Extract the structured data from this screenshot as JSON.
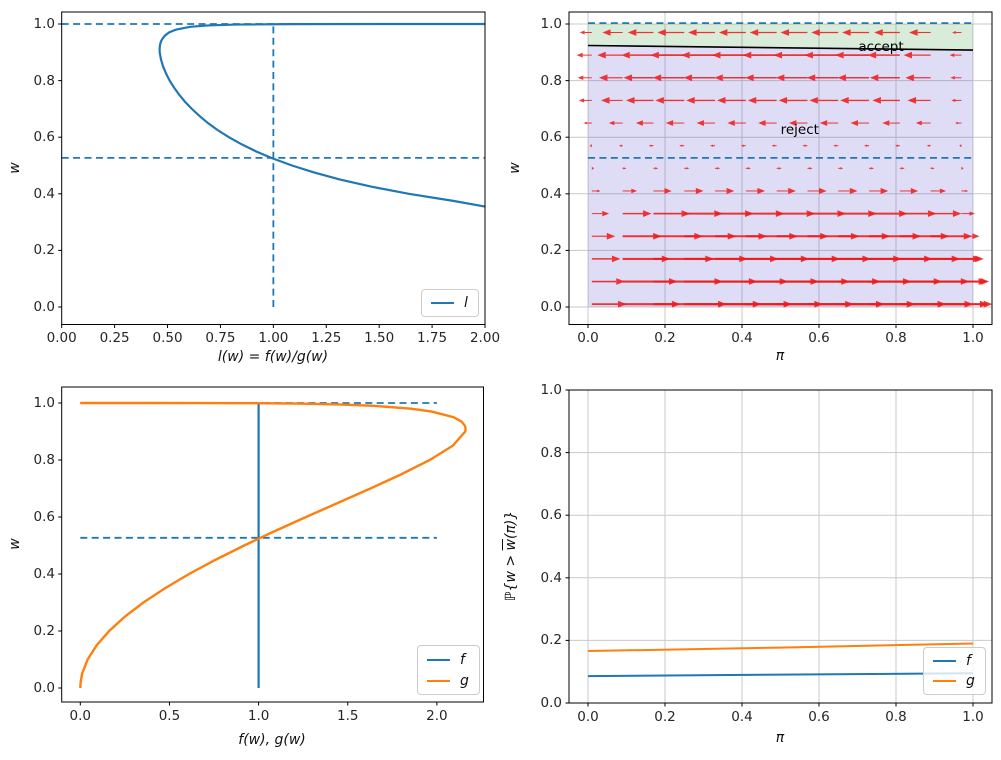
{
  "figure": {
    "background": "#ffffff"
  },
  "colors": {
    "blue": "#1f77b4",
    "orange": "#ff7f0e",
    "quiver_red": "#ee1c1c",
    "boundary_black": "#000000",
    "grid": "#c9c9c9",
    "accept_fill": "rgba(0,128,0,0.15)",
    "reject_fill": "rgba(63,55,201,0.17)",
    "spine": "#000000"
  },
  "chart_data": [
    {
      "id": "top_left",
      "type": "line",
      "xlabel": "l(w) = f(w)/g(w)",
      "ylabel": "w",
      "xlim": [
        0,
        2
      ],
      "ylim": [
        -0.06,
        1.05
      ],
      "grid": false,
      "xticks": {
        "values": [
          0,
          0.25,
          0.5,
          0.75,
          1.0,
          1.25,
          1.5,
          1.75,
          2.0
        ],
        "labels": [
          "0.00",
          "0.25",
          "0.50",
          "0.75",
          "1.00",
          "1.25",
          "1.50",
          "1.75",
          "2.00"
        ]
      },
      "yticks": {
        "values": [
          0,
          0.2,
          0.4,
          0.6,
          0.8,
          1.0
        ],
        "labels": [
          "0.0",
          "0.2",
          "0.4",
          "0.6",
          "0.8",
          "1.0"
        ]
      },
      "guides": [
        {
          "type": "h",
          "at": 1.0,
          "from": 0,
          "to": 2
        },
        {
          "type": "h",
          "at": 0.527,
          "from": 0,
          "to": 2
        },
        {
          "type": "v",
          "at": 1.0,
          "from": 0,
          "to": 1.0
        }
      ],
      "series": [
        {
          "name": "l",
          "color": "#1f77b4",
          "width": 2.2,
          "points": [
            [
              2.0,
              0.355
            ],
            [
              1.85,
              0.375
            ],
            [
              1.64,
              0.4
            ],
            [
              1.464,
              0.425
            ],
            [
              1.318,
              0.45
            ],
            [
              1.194,
              0.475
            ],
            [
              1.088,
              0.5
            ],
            [
              0.99,
              0.527
            ],
            [
              0.918,
              0.55
            ],
            [
              0.85,
              0.575
            ],
            [
              0.79,
              0.6
            ],
            [
              0.737,
              0.625
            ],
            [
              0.691,
              0.65
            ],
            [
              0.651,
              0.675
            ],
            [
              0.615,
              0.7
            ],
            [
              0.583,
              0.725
            ],
            [
              0.555,
              0.75
            ],
            [
              0.531,
              0.775
            ],
            [
              0.51,
              0.8
            ],
            [
              0.493,
              0.825
            ],
            [
              0.479,
              0.85
            ],
            [
              0.469,
              0.875
            ],
            [
              0.463,
              0.9
            ],
            [
              0.4627,
              0.91
            ],
            [
              0.4635,
              0.92
            ],
            [
              0.4657,
              0.93
            ],
            [
              0.47,
              0.94
            ],
            [
              0.478,
              0.95
            ],
            [
              0.489,
              0.96
            ],
            [
              0.507,
              0.97
            ],
            [
              0.539,
              0.98
            ],
            [
              0.607,
              0.99
            ],
            [
              0.69,
              0.995
            ],
            [
              0.824,
              0.998
            ],
            [
              1.084,
              0.9995
            ],
            [
              1.494,
              0.9999
            ],
            [
              1.72,
              0.99995
            ],
            [
              2.0,
              0.99998
            ]
          ]
        }
      ],
      "legend": [
        {
          "label": "l",
          "color": "#1f77b4"
        }
      ],
      "legend_loc": "lower right"
    },
    {
      "id": "top_right",
      "type": "quiver",
      "xlabel": "π",
      "ylabel": "w",
      "xlim": [
        -0.05,
        1.05
      ],
      "ylim": [
        -0.06,
        1.05
      ],
      "grid": true,
      "xticks": {
        "values": [
          0,
          0.2,
          0.4,
          0.6,
          0.8,
          1.0
        ],
        "labels": [
          "0.0",
          "0.2",
          "0.4",
          "0.6",
          "0.8",
          "1.0"
        ]
      },
      "yticks": {
        "values": [
          0,
          0.2,
          0.4,
          0.6,
          0.8,
          1.0
        ],
        "labels": [
          "0.0",
          "0.2",
          "0.4",
          "0.6",
          "0.8",
          "1.0"
        ]
      },
      "boundary": {
        "x": [
          0,
          1
        ],
        "w": [
          0.924,
          0.908
        ],
        "color": "#000000",
        "width": 1.6
      },
      "regions": [
        {
          "name": "accept",
          "fill": "rgba(0,128,0,0.15)",
          "between": [
            "boundary",
            1.0
          ]
        },
        {
          "name": "reject",
          "fill": "rgba(63,55,201,0.17)",
          "between": [
            0.0,
            "boundary"
          ]
        }
      ],
      "guides": [
        {
          "type": "h",
          "at": 1.003,
          "from": 0,
          "to": 1
        },
        {
          "type": "h",
          "at": 0.527,
          "from": 0,
          "to": 1
        }
      ],
      "annotations": [
        {
          "text": "accept",
          "x": 0.761,
          "y": 0.917
        },
        {
          "text": "reject",
          "x": 0.55,
          "y": 0.625
        }
      ],
      "quiver": {
        "color": "#ee1c1c",
        "x": [
          0.01,
          0.09,
          0.17,
          0.25,
          0.33,
          0.41,
          0.49,
          0.57,
          0.65,
          0.73,
          0.81,
          0.89,
          0.97
        ],
        "y": [
          0.01,
          0.09,
          0.17,
          0.25,
          0.33,
          0.41,
          0.49,
          0.57,
          0.65,
          0.73,
          0.81,
          0.89,
          0.97
        ],
        "row_u": [
          0.2,
          0.19,
          0.165,
          0.135,
          0.1,
          0.05,
          0.013,
          -0.013,
          -0.048,
          -0.075,
          -0.082,
          -0.088,
          -0.07
        ],
        "col_scale": [
          0.45,
          0.75,
          0.95,
          1,
          1,
          1,
          1,
          1,
          1,
          1,
          0.95,
          0.8,
          0.35
        ]
      }
    },
    {
      "id": "bottom_left",
      "type": "line",
      "xlabel": "f(w), g(w)",
      "ylabel": "w",
      "xlim": [
        -0.108,
        2.264
      ],
      "ylim": [
        -0.05,
        1.06
      ],
      "grid": false,
      "xticks": {
        "values": [
          0,
          0.5,
          1.0,
          1.5,
          2.0
        ],
        "labels": [
          "0.0",
          "0.5",
          "1.0",
          "1.5",
          "2.0"
        ]
      },
      "yticks": {
        "values": [
          0,
          0.2,
          0.4,
          0.6,
          0.8,
          1.0
        ],
        "labels": [
          "0.0",
          "0.2",
          "0.4",
          "0.6",
          "0.8",
          "1.0"
        ]
      },
      "guides": [
        {
          "type": "h",
          "at": 1.0,
          "from": 0,
          "to": 2
        },
        {
          "type": "h",
          "at": 0.527,
          "from": 0,
          "to": 2
        }
      ],
      "series": [
        {
          "name": "f",
          "color": "#1f77b4",
          "width": 2.2,
          "points": [
            [
              1,
              0
            ],
            [
              1,
              1
            ]
          ]
        },
        {
          "name": "g",
          "color": "#ff7f0e",
          "width": 2.4,
          "points": [
            [
              0,
              0
            ],
            [
              0.002,
              0.02
            ],
            [
              0.01,
              0.05
            ],
            [
              0.041,
              0.1
            ],
            [
              0.092,
              0.15
            ],
            [
              0.162,
              0.2
            ],
            [
              0.249,
              0.25
            ],
            [
              0.354,
              0.3
            ],
            [
              0.475,
              0.35
            ],
            [
              0.61,
              0.4
            ],
            [
              0.759,
              0.45
            ],
            [
              0.919,
              0.5
            ],
            [
              1.01,
              0.527
            ],
            [
              1.089,
              0.55
            ],
            [
              1.266,
              0.6
            ],
            [
              1.447,
              0.65
            ],
            [
              1.627,
              0.7
            ],
            [
              1.801,
              0.75
            ],
            [
              1.96,
              0.8
            ],
            [
              2.089,
              0.85
            ],
            [
              2.159,
              0.9
            ],
            [
              2.161,
              0.91
            ],
            [
              2.157,
              0.92
            ],
            [
              2.138,
              0.935
            ],
            [
              2.094,
              0.95
            ],
            [
              1.971,
              0.97
            ],
            [
              1.855,
              0.98
            ],
            [
              1.648,
              0.99
            ],
            [
              1.449,
              0.995
            ],
            [
              1.214,
              0.998
            ],
            [
              0.923,
              0.9995
            ],
            [
              0.669,
              0.9999
            ],
            [
              0.422,
              0.99999
            ],
            [
              0,
              1.0
            ]
          ]
        }
      ],
      "legend": [
        {
          "label": "f",
          "color": "#1f77b4"
        },
        {
          "label": "g",
          "color": "#ff7f0e"
        }
      ],
      "legend_loc": "lower right"
    },
    {
      "id": "bottom_right",
      "type": "line",
      "xlabel": "π",
      "ylabel": "ℙ{w > w̄(π)}",
      "ylabel_parts": {
        "pre": "ℙ{w > ",
        "bar": "w",
        "post": "(π)}"
      },
      "xlim": [
        -0.05,
        1.05
      ],
      "ylim": [
        0,
        1
      ],
      "grid": true,
      "xticks": {
        "values": [
          0,
          0.2,
          0.4,
          0.6,
          0.8,
          1.0
        ],
        "labels": [
          "0.0",
          "0.2",
          "0.4",
          "0.6",
          "0.8",
          "1.0"
        ]
      },
      "yticks": {
        "values": [
          0,
          0.2,
          0.4,
          0.6,
          0.8,
          1.0
        ],
        "labels": [
          "0.0",
          "0.2",
          "0.4",
          "0.6",
          "0.8",
          "1.0"
        ]
      },
      "guides": [],
      "series": [
        {
          "name": "f",
          "color": "#1f77b4",
          "width": 2,
          "points": [
            [
              0,
              0.086
            ],
            [
              0.5,
              0.0905
            ],
            [
              1,
              0.095
            ]
          ]
        },
        {
          "name": "g",
          "color": "#ff7f0e",
          "width": 2,
          "points": [
            [
              0,
              0.166
            ],
            [
              0.5,
              0.177
            ],
            [
              1,
              0.19
            ]
          ]
        }
      ],
      "legend": [
        {
          "label": "f",
          "color": "#1f77b4"
        },
        {
          "label": "g",
          "color": "#ff7f0e"
        }
      ],
      "legend_loc": "lower right"
    }
  ]
}
